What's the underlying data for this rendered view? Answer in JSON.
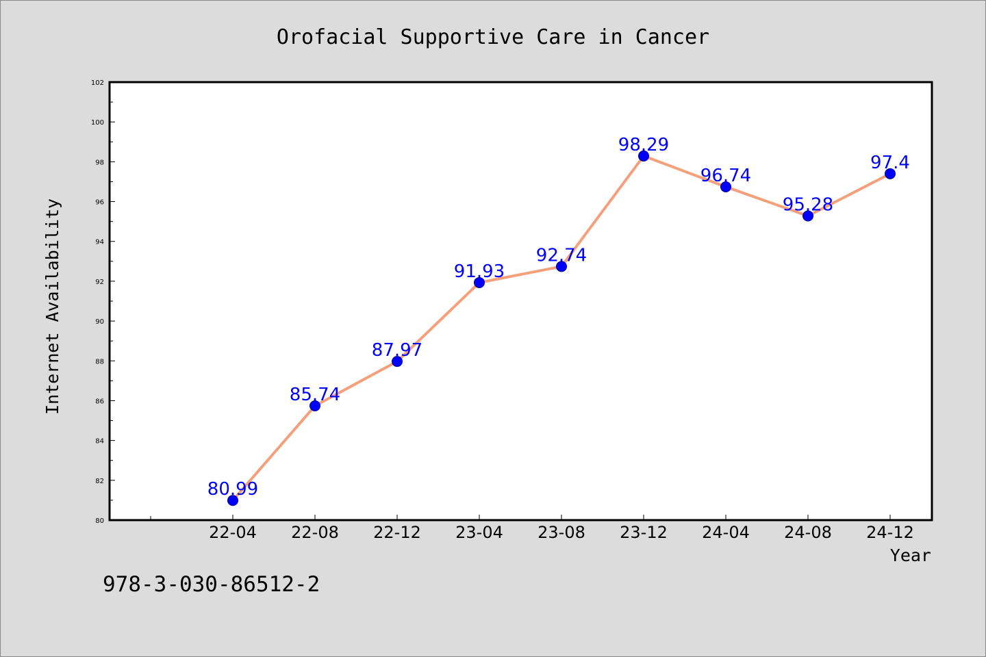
{
  "chart_data": {
    "type": "line",
    "title": "Orofacial Supportive Care in Cancer",
    "xlabel": "Year",
    "ylabel": "Internet Availability",
    "categories": [
      "22-04",
      "22-08",
      "22-12",
      "23-04",
      "23-08",
      "23-12",
      "24-04",
      "24-08",
      "24-12"
    ],
    "series": [
      {
        "values": [
          80.99,
          85.74,
          87.97,
          91.93,
          92.74,
          98.29,
          96.74,
          95.28,
          97.4
        ],
        "labels": [
          "80.99",
          "85.74",
          "87.97",
          "91.93",
          "92.74",
          "98.29",
          "96.74",
          "95.28",
          "97.4"
        ],
        "line_color": "#f4a07c",
        "marker_color": "#0000ff"
      }
    ],
    "ylim": [
      80,
      102
    ],
    "yticks": [
      80,
      82,
      84,
      86,
      88,
      90,
      92,
      94,
      96,
      98,
      100,
      102
    ],
    "ytick_labels": [
      "80",
      "82",
      "84",
      "86",
      "88",
      "90",
      "92",
      "94",
      "96",
      "98",
      "100",
      "102"
    ],
    "grid": false,
    "legend": "none"
  },
  "footer": {
    "isbn": "978-3-030-86512-2"
  },
  "colors": {
    "background": "#dcdcdc",
    "plot_background": "#ffffff",
    "line": "#f4a07c",
    "marker": "#0000ff",
    "data_label": "#0000ff"
  }
}
